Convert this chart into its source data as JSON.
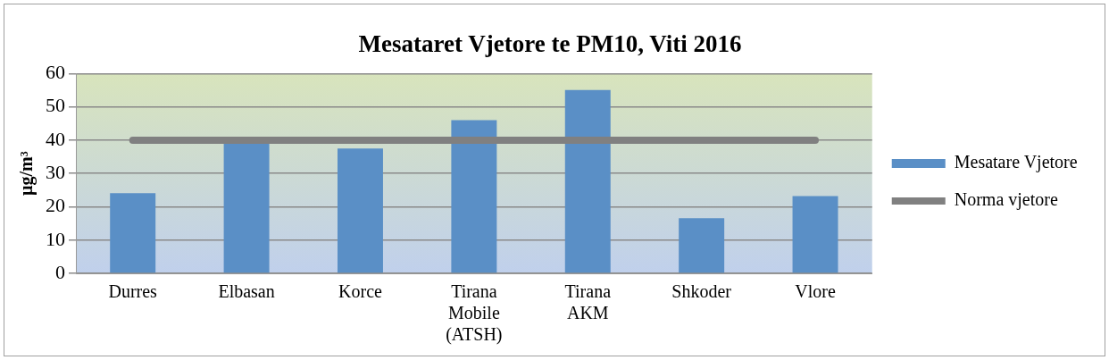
{
  "chart_data": {
    "type": "bar",
    "title": "Mesataret Vjetore te PM10, Viti 2016",
    "ylabel": "µg/m³",
    "categories": [
      "Durres",
      "Elbasan",
      "Korce",
      "Tirana Mobile (ATSH)",
      "Tirana AKM",
      "Shkoder",
      "Vlore"
    ],
    "series": [
      {
        "name": "Mesatare Vjetore",
        "color": "#5a8fc6",
        "values": [
          24.1,
          39,
          37.5,
          46,
          55.1,
          16.6,
          23.2
        ]
      },
      {
        "name": "Norma vjetore",
        "type": "line",
        "color": "#808080",
        "values": [
          40,
          40,
          40,
          40,
          40,
          40,
          40
        ]
      }
    ],
    "ylim": [
      0,
      60
    ],
    "yticks": [
      0,
      10,
      20,
      30,
      40,
      50,
      60
    ],
    "grid": "y",
    "legend": "right",
    "marker": "none",
    "line_style": "solid"
  }
}
